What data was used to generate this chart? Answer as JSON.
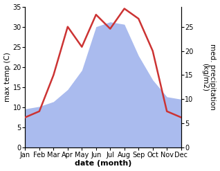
{
  "months": [
    "Jan",
    "Feb",
    "Mar",
    "Apr",
    "May",
    "Jun",
    "Jul",
    "Aug",
    "Sep",
    "Oct",
    "Nov",
    "Dec"
  ],
  "month_x": [
    1,
    2,
    3,
    4,
    5,
    6,
    7,
    8,
    9,
    10,
    11,
    12
  ],
  "temperature": [
    7.5,
    9.0,
    18.0,
    30.0,
    25.0,
    33.0,
    29.5,
    34.5,
    32.0,
    24.0,
    9.0,
    7.5
  ],
  "precipitation": [
    8.0,
    8.5,
    9.5,
    12.0,
    16.0,
    25.0,
    26.0,
    25.5,
    19.0,
    14.0,
    10.5,
    10.0
  ],
  "temp_color": "#cc3333",
  "precip_color": "#aabbee",
  "temp_ylim": [
    0,
    35
  ],
  "precip_ylim": [
    0,
    29.17
  ],
  "temp_yticks": [
    0,
    5,
    10,
    15,
    20,
    25,
    30,
    35
  ],
  "precip_yticks": [
    0,
    5,
    10,
    15,
    20,
    25
  ],
  "xlabel": "date (month)",
  "ylabel_left": "max temp (C)",
  "ylabel_right": "med. precipitation\n(kg/m2)",
  "bg_color": "#ffffff",
  "line_width": 1.8,
  "xlabel_fontsize": 8,
  "ylabel_fontsize": 7.5,
  "tick_fontsize": 7
}
